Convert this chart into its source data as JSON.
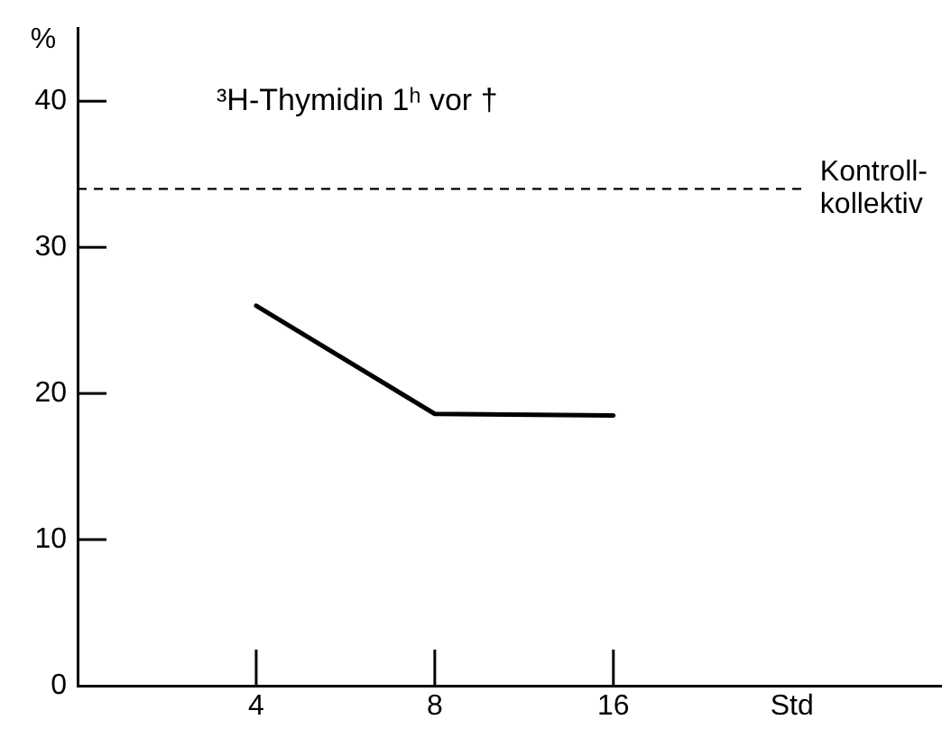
{
  "chart_data": {
    "type": "line",
    "title": "³H-Thymidin 1ʰ vor †",
    "xlabel": "Std",
    "ylabel": "%",
    "categories": [
      "4",
      "8",
      "16"
    ],
    "series": [
      {
        "color": "#000000",
        "values": [
          26,
          18.6,
          18.5
        ]
      }
    ],
    "ylim": [
      0,
      45
    ],
    "yticks": [
      0,
      10,
      20,
      30,
      40
    ],
    "ref_lines": [
      {
        "axis": "y",
        "value": 34,
        "label": "Kontroll-\nkollektiv",
        "line_style": "dashed",
        "color": "#000000"
      }
    ],
    "grid": false,
    "legend": false,
    "marker": "none",
    "line_style": "solid"
  }
}
